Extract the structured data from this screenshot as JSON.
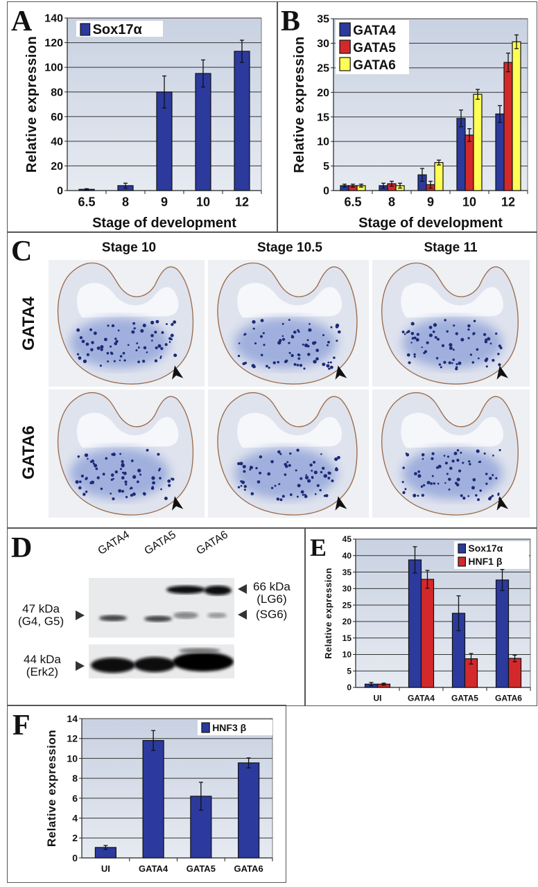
{
  "panel_letters": {
    "A": "A",
    "B": "B",
    "C": "C",
    "D": "D",
    "E": "E",
    "F": "F"
  },
  "panel_c": {
    "columns": [
      "Stage 10",
      "Stage 10.5",
      "Stage 11"
    ],
    "rows": [
      "GATA4",
      "GATA6"
    ]
  },
  "panel_d": {
    "lanes": [
      "GATA4",
      "GATA5",
      "GATA6"
    ],
    "markers": {
      "lg6_size": "66 kDa",
      "lg6": "(LG6)",
      "sg6": "(SG6)",
      "g45_size": "47 kDa",
      "g45": "(G4, G5)",
      "erk_size": "44 kDa",
      "erk": "(Erk2)"
    }
  },
  "colors": {
    "blue": "#2b3a9c",
    "red": "#d3292b",
    "yellow": "#ffff55",
    "plot_bg": "#d5dce8"
  },
  "chart_data": [
    {
      "panel": "A",
      "type": "bar",
      "categories": [
        "6.5",
        "8",
        "9",
        "10",
        "12"
      ],
      "series": [
        {
          "name": "Sox17α",
          "color": "#2b3a9c",
          "values": [
            1,
            4,
            80,
            95,
            113
          ],
          "errors": [
            0.5,
            2,
            13,
            11,
            9
          ]
        }
      ],
      "xlabel": "Stage of development",
      "ylabel": "Relative expression",
      "ylim": [
        0,
        140
      ],
      "yticks": [
        0,
        20,
        40,
        60,
        80,
        100,
        120,
        140
      ],
      "grid": true,
      "legend": "top-left"
    },
    {
      "panel": "B",
      "type": "bar",
      "categories": [
        "6.5",
        "8",
        "9",
        "10",
        "12"
      ],
      "series": [
        {
          "name": "GATA4",
          "color": "#2b3a9c",
          "values": [
            1,
            1,
            3.2,
            14.7,
            15.6
          ],
          "errors": [
            0.3,
            0.5,
            1.3,
            1.7,
            1.7
          ]
        },
        {
          "name": "GATA5",
          "color": "#d3292b",
          "values": [
            1,
            1.4,
            1.2,
            11.3,
            26.1
          ],
          "errors": [
            0.3,
            0.5,
            0.7,
            1.3,
            1.9
          ]
        },
        {
          "name": "GATA6",
          "color": "#ffff55",
          "values": [
            1,
            1,
            5.7,
            19.6,
            30.3
          ],
          "errors": [
            0.3,
            0.5,
            0.5,
            1.0,
            1.4
          ]
        }
      ],
      "xlabel": "Stage of development",
      "ylabel": "Relative expression",
      "ylim": [
        0,
        35
      ],
      "yticks": [
        0,
        5,
        10,
        15,
        20,
        25,
        30,
        35
      ],
      "grid": true,
      "legend": "top-left"
    },
    {
      "panel": "E",
      "type": "bar",
      "categories": [
        "UI",
        "GATA4",
        "GATA5",
        "GATA6"
      ],
      "series": [
        {
          "name": "Sox17α",
          "color": "#2b3a9c",
          "values": [
            1,
            38.7,
            22.5,
            32.6
          ],
          "errors": [
            0.5,
            4,
            5.3,
            3.2
          ]
        },
        {
          "name": "HNF1 β",
          "color": "#d3292b",
          "values": [
            1,
            32.8,
            8.7,
            8.8
          ],
          "errors": [
            0.3,
            2.7,
            1.6,
            1.0
          ]
        }
      ],
      "xlabel": "",
      "ylabel": "Relative expression",
      "ylim": [
        0,
        45
      ],
      "yticks": [
        0,
        5,
        10,
        15,
        20,
        25,
        30,
        35,
        40,
        45
      ],
      "grid": true,
      "legend": "top-right"
    },
    {
      "panel": "F",
      "type": "bar",
      "categories": [
        "UI",
        "GATA4",
        "GATA5",
        "GATA6"
      ],
      "series": [
        {
          "name": "HNF3 β",
          "color": "#2b3a9c",
          "values": [
            1.05,
            11.8,
            6.2,
            9.55
          ],
          "errors": [
            0.2,
            1.0,
            1.4,
            0.5
          ]
        }
      ],
      "xlabel": "",
      "ylabel": "Relative expression",
      "ylim": [
        0,
        14
      ],
      "yticks": [
        0,
        2,
        4,
        6,
        8,
        10,
        12,
        14
      ],
      "grid": true,
      "legend": "top-right"
    }
  ]
}
